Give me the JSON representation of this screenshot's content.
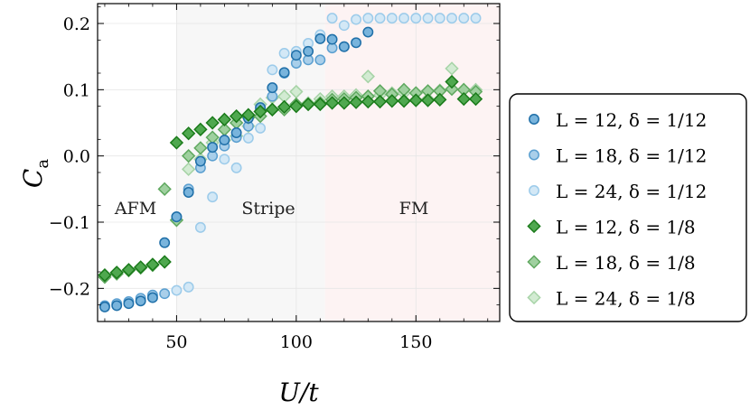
{
  "chart_data": {
    "type": "scatter",
    "xlabel": "U/t",
    "ylabel": "C",
    "ylabel_subscript": "a",
    "xlim": [
      17,
      185
    ],
    "ylim": [
      -0.25,
      0.23
    ],
    "xticks": [
      50,
      100,
      150
    ],
    "xtick_labels": [
      "50",
      "100",
      "150"
    ],
    "yticks": [
      -0.2,
      -0.1,
      0.0,
      0.1,
      0.2
    ],
    "ytick_labels": [
      "−0.2",
      "−0.1",
      "0.0",
      "0.1",
      "0.2"
    ],
    "grid": true,
    "legend_position": "outside-right",
    "regions": [
      {
        "label": "AFM",
        "x0": 17,
        "x1": 50,
        "color": "#ffffff"
      },
      {
        "label": "Stripe",
        "x0": 50,
        "x1": 112,
        "color": "#f7f7f7"
      },
      {
        "label": "FM",
        "x0": 112,
        "x1": 185,
        "color": "#fdf3f3"
      }
    ],
    "series": [
      {
        "name": "L = 12, δ = 1/12",
        "marker": "circle",
        "edge": "#1f6fa8",
        "fill": "#79b4dc",
        "x": [
          20,
          25,
          30,
          35,
          40,
          45,
          50,
          55,
          60,
          65,
          70,
          75,
          80,
          85,
          90,
          95,
          100,
          105,
          110,
          115,
          120,
          125,
          130
        ],
        "y": [
          -0.228,
          -0.226,
          -0.223,
          -0.219,
          -0.214,
          -0.131,
          -0.092,
          -0.055,
          -0.008,
          0.013,
          0.024,
          0.035,
          0.057,
          0.073,
          0.103,
          0.126,
          0.152,
          0.158,
          0.177,
          0.176,
          0.165,
          0.171,
          0.187
        ]
      },
      {
        "name": "L = 18, δ = 1/12",
        "marker": "circle",
        "edge": "#5a9fd0",
        "fill": "#a9cfea",
        "x": [
          20,
          25,
          30,
          35,
          40,
          45,
          50,
          55,
          60,
          65,
          70,
          75,
          80,
          85,
          90,
          95,
          100,
          105,
          110,
          115,
          120
        ],
        "y": [
          -0.226,
          -0.223,
          -0.22,
          -0.215,
          -0.21,
          -0.208,
          -0.092,
          -0.05,
          -0.018,
          0.0,
          0.015,
          0.028,
          0.045,
          0.07,
          0.09,
          0.125,
          0.14,
          0.145,
          0.145,
          0.163,
          0.165
        ]
      },
      {
        "name": "L = 24, δ = 1/12",
        "marker": "circle",
        "edge": "#9ccbea",
        "fill": "#d3e8f6",
        "x": [
          50,
          55,
          60,
          65,
          70,
          75,
          80,
          85,
          90,
          95,
          100,
          105,
          110,
          115,
          120,
          125,
          130,
          135,
          140,
          145,
          150,
          155,
          160,
          165,
          170,
          175
        ],
        "y": [
          -0.203,
          -0.198,
          -0.108,
          -0.062,
          -0.005,
          -0.018,
          0.027,
          0.042,
          0.13,
          0.155,
          0.158,
          0.17,
          0.183,
          0.208,
          0.197,
          0.206,
          0.208,
          0.208,
          0.208,
          0.208,
          0.208,
          0.208,
          0.208,
          0.208,
          0.208,
          0.208
        ]
      },
      {
        "name": "L = 12, δ = 1/8",
        "marker": "diamond",
        "edge": "#1a7a1a",
        "fill": "#4fa84f",
        "x": [
          20,
          25,
          30,
          35,
          40,
          45,
          50,
          55,
          60,
          65,
          70,
          75,
          80,
          85,
          90,
          95,
          100,
          105,
          110,
          115,
          120,
          125,
          130,
          135,
          140,
          145,
          150,
          155,
          160,
          165,
          170,
          175
        ],
        "y": [
          -0.18,
          -0.176,
          -0.172,
          -0.168,
          -0.164,
          -0.16,
          0.02,
          0.034,
          0.04,
          0.05,
          0.055,
          0.06,
          0.062,
          0.067,
          0.07,
          0.074,
          0.075,
          0.078,
          0.078,
          0.08,
          0.08,
          0.081,
          0.082,
          0.082,
          0.083,
          0.083,
          0.084,
          0.084,
          0.085,
          0.112,
          0.086,
          0.086
        ]
      },
      {
        "name": "L = 18, δ = 1/8",
        "marker": "diamond",
        "edge": "#5fa85f",
        "fill": "#9fd09f",
        "x": [
          20,
          25,
          30,
          35,
          40,
          45,
          50,
          55,
          60,
          65,
          70,
          75,
          80,
          85,
          90,
          95,
          100,
          105,
          110,
          115,
          120,
          125,
          130,
          135,
          140,
          145,
          150,
          155,
          160,
          165,
          170,
          175
        ],
        "y": [
          -0.183,
          -0.178,
          -0.173,
          -0.169,
          -0.165,
          -0.05,
          -0.097,
          0.0,
          0.012,
          0.028,
          0.04,
          0.05,
          0.058,
          0.06,
          0.07,
          0.07,
          0.078,
          0.078,
          0.08,
          0.085,
          0.086,
          0.088,
          0.09,
          0.098,
          0.093,
          0.1,
          0.095,
          0.098,
          0.098,
          0.101,
          0.1,
          0.097
        ]
      },
      {
        "name": "L = 24, δ = 1/8",
        "marker": "diamond",
        "edge": "#a6d3a6",
        "fill": "#d2ebd2",
        "x": [
          55,
          60,
          65,
          70,
          75,
          80,
          85,
          90,
          95,
          100,
          105,
          110,
          115,
          120,
          125,
          130,
          135,
          140,
          145,
          150,
          155,
          160,
          165,
          170,
          175
        ],
        "y": [
          -0.02,
          -0.005,
          0.02,
          0.024,
          0.03,
          0.045,
          0.078,
          0.088,
          0.09,
          0.097,
          0.08,
          0.086,
          0.09,
          0.09,
          0.092,
          0.12,
          0.092,
          0.095,
          0.095,
          0.095,
          0.086,
          0.099,
          0.132,
          0.1,
          0.1
        ]
      }
    ]
  }
}
